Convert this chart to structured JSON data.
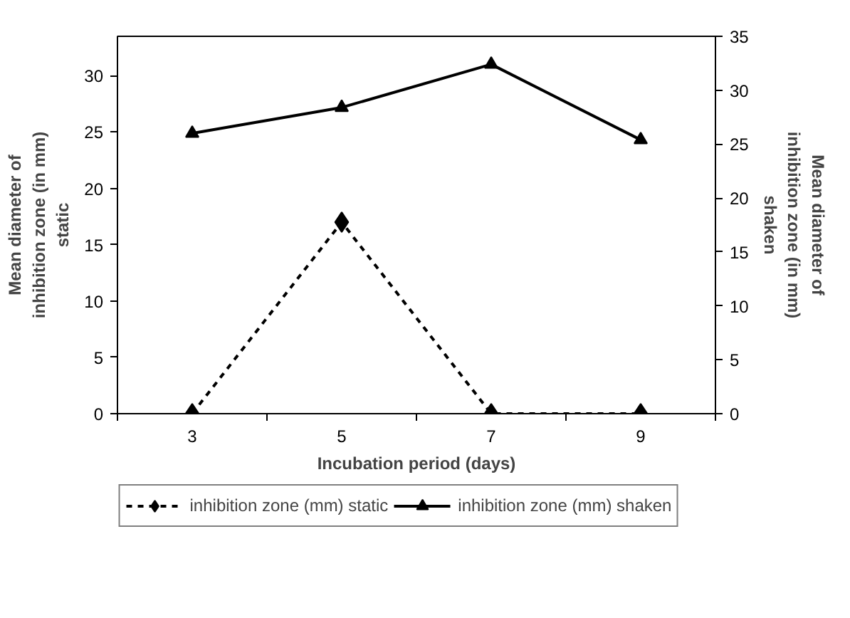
{
  "chart_data": {
    "type": "line",
    "xlabel": "Incubation period (days)",
    "ylabel": "Mean diameter of\ninhibition zone (in mm)\nstatic",
    "y2label": "Mean diameter of\ninhibition zone (in mm)\nshaken",
    "categories": [
      "3",
      "5",
      "7",
      "9"
    ],
    "series": [
      {
        "name": "inhibition zone (mm) static",
        "color": "#000000",
        "values": [
          0,
          17,
          0,
          0
        ],
        "marker": "diamond",
        "line_style": "dashed"
      },
      {
        "name": "inhibition zone (mm) shaken",
        "color": "#000000",
        "values": [
          26,
          28.4,
          32.4,
          25.4
        ],
        "marker": "triangle",
        "line_style": "solid",
        "axis": "y2"
      }
    ],
    "ylim": [
      0,
      33.5
    ],
    "yticks": [
      0,
      5,
      10,
      15,
      20,
      25,
      30
    ],
    "y2lim": [
      0,
      35
    ],
    "y2ticks": [
      0,
      5,
      10,
      15,
      20,
      25,
      30,
      35
    ],
    "grid": false,
    "legend": "bottom"
  }
}
